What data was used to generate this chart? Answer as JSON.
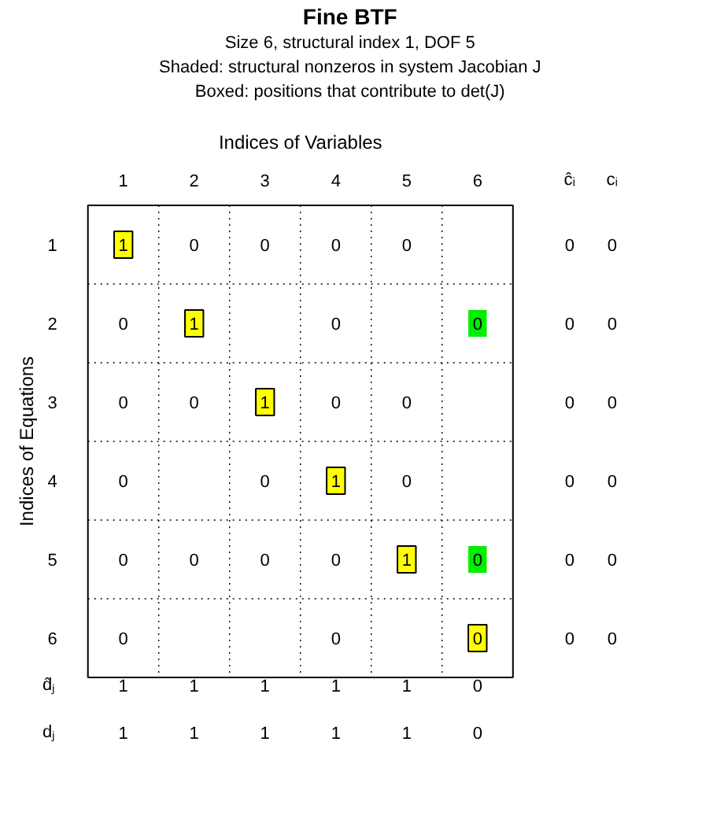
{
  "chart_data": {
    "type": "heatmap",
    "title": "Fine BTF",
    "subtitle": "Size 6, structural index 1, DOF 5\nShaded: structural nonzeros in system Jacobian J\nBoxed: positions that contribute to det(J)",
    "xlabel": "Indices of Variables",
    "ylabel": "Indices of Equations",
    "categories": [
      "1",
      "2",
      "3",
      "4",
      "5",
      "6",
      "ĉᵢ",
      "cᵢ"
    ],
    "y_categories": [
      "1",
      "2",
      "3",
      "4",
      "5",
      "6",
      "d̂ⱼ",
      "dⱼ"
    ],
    "cells": [
      [
        1,
        0,
        0,
        0,
        0,
        null,
        0,
        0
      ],
      [
        0,
        1,
        null,
        0,
        null,
        0,
        0,
        0
      ],
      [
        0,
        0,
        1,
        0,
        0,
        null,
        0,
        0
      ],
      [
        0,
        null,
        0,
        1,
        0,
        null,
        0,
        0
      ],
      [
        0,
        0,
        0,
        0,
        1,
        0,
        0,
        0
      ],
      [
        0,
        null,
        null,
        0,
        null,
        0,
        0,
        0
      ],
      [
        1,
        1,
        1,
        1,
        1,
        0,
        null,
        null
      ],
      [
        1,
        1,
        1,
        1,
        1,
        0,
        null,
        null
      ]
    ],
    "data_labels": true,
    "colors": [
      [
        "#ffff00",
        null,
        null,
        null,
        null,
        null,
        null,
        null
      ],
      [
        null,
        "#ffff00",
        null,
        null,
        null,
        "#00ee00",
        null,
        null
      ],
      [
        null,
        null,
        "#ffff00",
        null,
        null,
        null,
        null,
        null
      ],
      [
        null,
        null,
        null,
        "#ffff00",
        null,
        null,
        null,
        null
      ],
      [
        null,
        null,
        null,
        null,
        "#ffff00",
        "#00ee00",
        null,
        null
      ],
      [
        null,
        null,
        null,
        null,
        null,
        "#ffff00",
        null,
        null
      ],
      [
        null,
        null,
        null,
        null,
        null,
        null,
        null,
        null
      ],
      [
        null,
        null,
        null,
        null,
        null,
        null,
        null,
        null
      ]
    ],
    "grid": true
  }
}
